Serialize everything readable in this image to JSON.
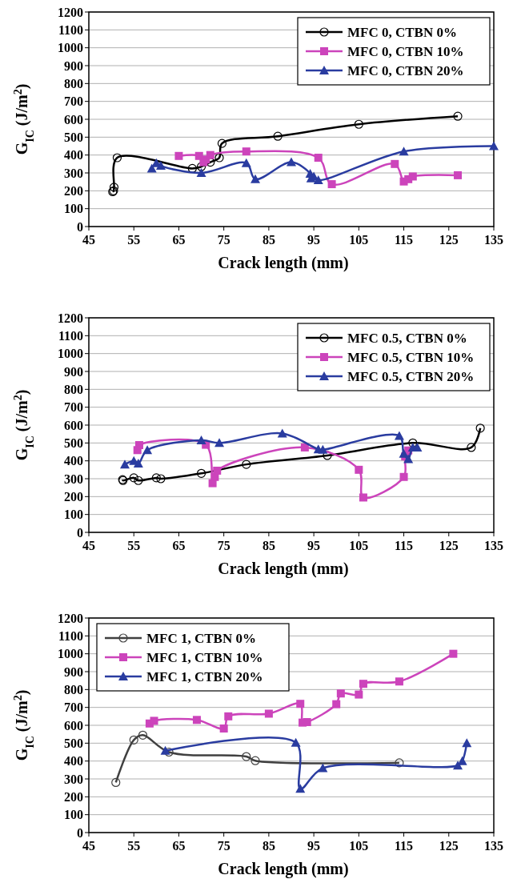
{
  "chart_data": [
    {
      "type": "line",
      "xlabel": "Crack length (mm)",
      "ylabel": "G$_{IC}$ (J/m$^{2}$)",
      "xlim": [
        45,
        135
      ],
      "xticks": [
        45,
        55,
        65,
        75,
        85,
        95,
        105,
        115,
        125,
        135
      ],
      "ylim": [
        0,
        1200
      ],
      "yticks": [
        0,
        100,
        200,
        300,
        400,
        500,
        600,
        700,
        800,
        900,
        1000,
        1100,
        1200
      ],
      "grid": "y",
      "legend": "top right",
      "series": [
        {
          "name": "MFC 0, CTBN 0%",
          "color": "#000000",
          "marker": "circle",
          "x": [
            50.3,
            50.5,
            50.6,
            51.3,
            68,
            70,
            72,
            74,
            74.6,
            87,
            105,
            127
          ],
          "values": [
            195,
            200,
            220,
            385,
            325,
            335,
            360,
            385,
            465,
            505,
            572,
            617
          ]
        },
        {
          "name": "MFC 0, CTBN 10%",
          "color": "#cc44bb",
          "marker": "square",
          "x": [
            65,
            69.5,
            70.5,
            71,
            72,
            80,
            96,
            99,
            113,
            115,
            116,
            117,
            127
          ],
          "values": [
            395,
            395,
            360,
            375,
            400,
            420,
            385,
            237,
            350,
            252,
            265,
            280,
            287
          ]
        },
        {
          "name": "MFC 0, CTBN 20%",
          "color": "#2a3ca0",
          "marker": "triangle",
          "x": [
            59,
            60,
            61,
            70,
            80,
            82,
            90,
            94.2,
            94.4,
            95,
            96,
            115,
            135
          ],
          "values": [
            325,
            355,
            340,
            300,
            355,
            265,
            360,
            295,
            270,
            280,
            260,
            420,
            450
          ]
        }
      ]
    },
    {
      "type": "line",
      "xlabel": "Crack length (mm)",
      "ylabel": "G$_{IC}$ (J/m$^{2}$)",
      "xlim": [
        45,
        135
      ],
      "xticks": [
        45,
        55,
        65,
        75,
        85,
        95,
        105,
        115,
        125,
        135
      ],
      "ylim": [
        0,
        1200
      ],
      "yticks": [
        0,
        100,
        200,
        300,
        400,
        500,
        600,
        700,
        800,
        900,
        1000,
        1100,
        1200
      ],
      "grid": "y",
      "legend": "top right",
      "series": [
        {
          "name": "MFC 0.5, CTBN 0%",
          "color": "#000000",
          "marker": "circle",
          "x": [
            52.5,
            52.6,
            55,
            56,
            60,
            61,
            70,
            80,
            98,
            117,
            130,
            132
          ],
          "values": [
            295,
            290,
            305,
            290,
            305,
            300,
            330,
            380,
            430,
            500,
            475,
            583
          ]
        },
        {
          "name": "MFC 0.5, CTBN 10%",
          "color": "#cc44bb",
          "marker": "square",
          "x": [
            55.8,
            56.2,
            71,
            72.5,
            73,
            73.5,
            93,
            105,
            106,
            115,
            115.3,
            116
          ],
          "values": [
            460,
            488,
            490,
            275,
            310,
            345,
            475,
            350,
            195,
            310,
            425,
            458
          ]
        },
        {
          "name": "MFC 0.5, CTBN 20%",
          "color": "#2a3ca0",
          "marker": "triangle",
          "x": [
            53,
            55,
            56,
            58,
            70,
            74,
            88,
            96,
            97,
            114,
            115,
            116,
            117,
            118
          ],
          "values": [
            380,
            400,
            385,
            460,
            515,
            500,
            553,
            465,
            462,
            540,
            440,
            410,
            475,
            475
          ]
        }
      ]
    },
    {
      "type": "line",
      "xlabel": "Crack length (mm)",
      "ylabel": "G$_{IC}$ (J/m$^{2}$)",
      "xlim": [
        45,
        135
      ],
      "xticks": [
        45,
        55,
        65,
        75,
        85,
        95,
        105,
        115,
        125,
        135
      ],
      "ylim": [
        0,
        1200
      ],
      "yticks": [
        0,
        100,
        200,
        300,
        400,
        500,
        600,
        700,
        800,
        900,
        1000,
        1100,
        1200
      ],
      "grid": "y",
      "legend": "top left",
      "series": [
        {
          "name": "MFC 1, CTBN 0%",
          "color": "#404040",
          "marker": "circle",
          "x": [
            51,
            55,
            57,
            62.8,
            80,
            82,
            114
          ],
          "values": [
            280,
            518,
            545,
            450,
            425,
            402,
            390
          ]
        },
        {
          "name": "MFC 1, CTBN 10%",
          "color": "#cc44bb",
          "marker": "square",
          "x": [
            58.5,
            59.5,
            69,
            75,
            76,
            85,
            92,
            92.5,
            93.5,
            100,
            101,
            105,
            106,
            114,
            126
          ],
          "values": [
            610,
            625,
            630,
            582,
            650,
            665,
            720,
            615,
            618,
            718,
            778,
            772,
            832,
            845,
            1000
          ]
        },
        {
          "name": "MFC 1, CTBN 20%",
          "color": "#2a3ca0",
          "marker": "triangle",
          "x": [
            62,
            91,
            92,
            97,
            127,
            128,
            129
          ],
          "values": [
            458,
            503,
            245,
            360,
            375,
            400,
            500
          ]
        }
      ]
    }
  ]
}
